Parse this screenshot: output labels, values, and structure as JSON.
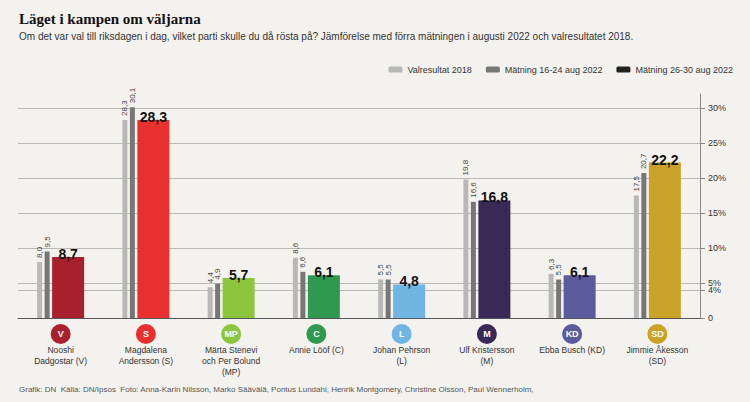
{
  "chart_data": {
    "type": "bar",
    "title": "Läget i kampen om väljarna",
    "subtitle": "Om det var val till riksdagen i dag, vilket parti skulle du då rösta på? Jämförelse med förra mätningen i augusti 2022 och valresultatet 2018.",
    "categories": [
      "V",
      "S",
      "MP",
      "C",
      "L",
      "M",
      "KD",
      "SD"
    ],
    "annotations": [
      "Nooshi Dadgostar (V)",
      "Magdalena Andersson (S)",
      "Märta Stenevi och Per Bolund (MP)",
      "Annie Lööf (C)",
      "Johan Pehrson (L)",
      "Ulf Kristersson (M)",
      "Ebba Busch (KD)",
      "Jimmie Åkesson (SD)"
    ],
    "series": [
      {
        "name": "Valresultat 2018",
        "color": "#b8b8b8",
        "values": [
          8.0,
          28.3,
          4.4,
          8.6,
          5.5,
          19.8,
          6.3,
          17.5
        ],
        "value_labels": [
          "8,0",
          "28,3",
          "4,4",
          "8,6",
          "5,5",
          "19,8",
          "6,3",
          "17,5"
        ]
      },
      {
        "name": "Mätning 16-24 aug 2022",
        "color": "#777777",
        "values": [
          9.5,
          30.1,
          4.9,
          6.6,
          5.5,
          16.6,
          5.5,
          20.7
        ],
        "value_labels": [
          "9,5",
          "30,1",
          "4,9",
          "6,6",
          "5,5",
          "16,6",
          "5,5",
          "20,7"
        ]
      },
      {
        "name": "Mätning 26-30 aug 2022",
        "color": "#222222",
        "colors": [
          "#a8202c",
          "#e8312f",
          "#8cc63f",
          "#2f9a4f",
          "#6fb6e4",
          "#3a2857",
          "#5b5a9c",
          "#c9a227"
        ],
        "values": [
          8.7,
          28.3,
          5.7,
          6.1,
          4.8,
          16.8,
          6.1,
          22.2
        ],
        "value_labels": [
          "8,7",
          "28,3",
          "5,7",
          "6,1",
          "4,8",
          "16,8",
          "6,1",
          "22,2"
        ]
      }
    ],
    "ylim": [
      0,
      32
    ],
    "yticks": [
      0,
      {
        "value": 4,
        "label": "4%"
      },
      {
        "value": 5,
        "label": "5%"
      },
      {
        "value": 10,
        "label": "10%"
      },
      {
        "value": 15,
        "label": "15%"
      },
      {
        "value": 20,
        "label": "20%"
      },
      {
        "value": 25,
        "label": "25%"
      },
      {
        "value": 30,
        "label": "30%"
      }
    ],
    "grid": true,
    "data_labels": true,
    "legend": "top-right",
    "source": "Grafik: DN  Källa: DN/Ipsos  Foto: Anna-Karin Nilsson, Marko Säävälä, Pontus Lundahl, Henrik Montgomery, Christine Olsson, Paul Wennerholm,"
  }
}
